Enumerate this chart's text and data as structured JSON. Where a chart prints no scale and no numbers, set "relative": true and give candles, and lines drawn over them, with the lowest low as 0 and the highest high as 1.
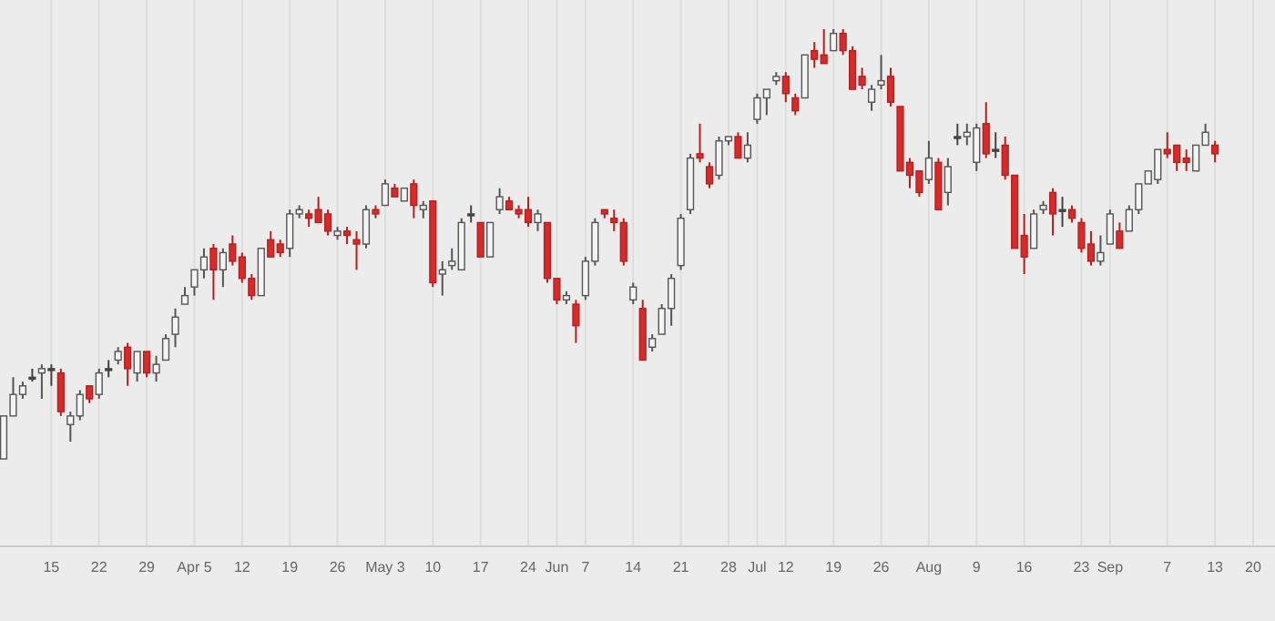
{
  "chart_data": {
    "type": "candlestick",
    "relative": true,
    "grid": "x",
    "categories": [
      null,
      null,
      null,
      null,
      null,
      "15",
      null,
      null,
      null,
      null,
      "22",
      null,
      null,
      null,
      null,
      "29",
      null,
      null,
      null,
      null,
      "Apr 5",
      null,
      null,
      null,
      null,
      "12",
      null,
      null,
      null,
      null,
      "19",
      null,
      null,
      null,
      null,
      "26",
      null,
      null,
      null,
      null,
      "May 3",
      null,
      null,
      null,
      null,
      "10",
      null,
      null,
      null,
      null,
      "17",
      null,
      null,
      null,
      null,
      "24",
      null,
      null,
      "Jun",
      null,
      null,
      "7",
      null,
      null,
      null,
      null,
      "14",
      null,
      null,
      null,
      null,
      "21",
      null,
      null,
      null,
      null,
      "28",
      null,
      null,
      "Jul",
      null,
      null,
      "12",
      null,
      null,
      null,
      null,
      "19",
      null,
      null,
      null,
      null,
      "26",
      null,
      null,
      null,
      null,
      "Aug",
      null,
      null,
      null,
      null,
      "9",
      null,
      null,
      null,
      null,
      "16",
      null,
      null,
      null,
      null,
      null,
      "23",
      null,
      null,
      "Sep",
      null,
      null,
      null,
      null,
      null,
      "7",
      null,
      null,
      null,
      null,
      "13",
      null,
      null,
      null,
      "20"
    ],
    "ohlc": [
      [
        0,
        0.1,
        0,
        0.1
      ],
      [
        0.1,
        0.19,
        0.1,
        0.15
      ],
      [
        0.15,
        0.18,
        0.14,
        0.17
      ],
      [
        0.19,
        0.21,
        0.18,
        0.19
      ],
      [
        0.2,
        0.22,
        0.14,
        0.21
      ],
      [
        0.21,
        0.22,
        0.17,
        0.21
      ],
      [
        0.2,
        0.21,
        0.1,
        0.11
      ],
      [
        0.08,
        0.11,
        0.04,
        0.1
      ],
      [
        0.1,
        0.16,
        0.09,
        0.15
      ],
      [
        0.17,
        0.17,
        0.13,
        0.14
      ],
      [
        0.15,
        0.21,
        0.14,
        0.2
      ],
      [
        0.21,
        0.23,
        0.19,
        0.21
      ],
      [
        0.23,
        0.26,
        0.22,
        0.25
      ],
      [
        0.26,
        0.27,
        0.17,
        0.21
      ],
      [
        0.2,
        0.25,
        0.18,
        0.25
      ],
      [
        0.25,
        0.25,
        0.19,
        0.2
      ],
      [
        0.2,
        0.24,
        0.18,
        0.22
      ],
      [
        0.23,
        0.29,
        0.23,
        0.28
      ],
      [
        0.29,
        0.35,
        0.26,
        0.33
      ],
      [
        0.36,
        0.4,
        0.36,
        0.38
      ],
      [
        0.4,
        0.44,
        0.38,
        0.44
      ],
      [
        0.44,
        0.49,
        0.42,
        0.47
      ],
      [
        0.49,
        0.5,
        0.37,
        0.44
      ],
      [
        0.44,
        0.49,
        0.4,
        0.48
      ],
      [
        0.5,
        0.52,
        0.45,
        0.46
      ],
      [
        0.47,
        0.48,
        0.41,
        0.42
      ],
      [
        0.42,
        0.43,
        0.37,
        0.38
      ],
      [
        0.38,
        0.49,
        0.38,
        0.49
      ],
      [
        0.51,
        0.53,
        0.47,
        0.47
      ],
      [
        0.5,
        0.51,
        0.47,
        0.48
      ],
      [
        0.49,
        0.58,
        0.47,
        0.57
      ],
      [
        0.57,
        0.59,
        0.56,
        0.58
      ],
      [
        0.57,
        0.58,
        0.54,
        0.56
      ],
      [
        0.58,
        0.61,
        0.55,
        0.55
      ],
      [
        0.57,
        0.58,
        0.52,
        0.53
      ],
      [
        0.52,
        0.54,
        0.51,
        0.53
      ],
      [
        0.53,
        0.54,
        0.5,
        0.52
      ],
      [
        0.51,
        0.53,
        0.44,
        0.5
      ],
      [
        0.5,
        0.59,
        0.49,
        0.58
      ],
      [
        0.58,
        0.59,
        0.56,
        0.57
      ],
      [
        0.59,
        0.65,
        0.59,
        0.64
      ],
      [
        0.63,
        0.64,
        0.61,
        0.61
      ],
      [
        0.6,
        0.63,
        0.6,
        0.63
      ],
      [
        0.64,
        0.65,
        0.56,
        0.59
      ],
      [
        0.58,
        0.6,
        0.56,
        0.59
      ],
      [
        0.6,
        0.6,
        0.4,
        0.41
      ],
      [
        0.43,
        0.46,
        0.38,
        0.44
      ],
      [
        0.45,
        0.49,
        0.44,
        0.46
      ],
      [
        0.44,
        0.56,
        0.44,
        0.55
      ],
      [
        0.57,
        0.59,
        0.55,
        0.57
      ],
      [
        0.55,
        0.55,
        0.47,
        0.47
      ],
      [
        0.47,
        0.55,
        0.47,
        0.55
      ],
      [
        0.58,
        0.63,
        0.57,
        0.61
      ],
      [
        0.6,
        0.61,
        0.58,
        0.58
      ],
      [
        0.58,
        0.59,
        0.56,
        0.57
      ],
      [
        0.58,
        0.61,
        0.54,
        0.55
      ],
      [
        0.55,
        0.58,
        0.53,
        0.57
      ],
      [
        0.55,
        0.55,
        0.41,
        0.42
      ],
      [
        0.42,
        0.42,
        0.36,
        0.37
      ],
      [
        0.37,
        0.39,
        0.36,
        0.38
      ],
      [
        0.36,
        0.37,
        0.27,
        0.31
      ],
      [
        0.38,
        0.47,
        0.37,
        0.46
      ],
      [
        0.46,
        0.56,
        0.45,
        0.55
      ],
      [
        0.58,
        0.58,
        0.56,
        0.57
      ],
      [
        0.56,
        0.58,
        0.53,
        0.55
      ],
      [
        0.55,
        0.56,
        0.45,
        0.46
      ],
      [
        0.37,
        0.41,
        0.36,
        0.4
      ],
      [
        0.35,
        0.37,
        0.23,
        0.23
      ],
      [
        0.26,
        0.29,
        0.25,
        0.28
      ],
      [
        0.29,
        0.36,
        0.29,
        0.35
      ],
      [
        0.35,
        0.43,
        0.31,
        0.42
      ],
      [
        0.45,
        0.57,
        0.44,
        0.56
      ],
      [
        0.58,
        0.71,
        0.57,
        0.7
      ],
      [
        0.71,
        0.78,
        0.69,
        0.7
      ],
      [
        0.68,
        0.69,
        0.63,
        0.64
      ],
      [
        0.66,
        0.75,
        0.65,
        0.74
      ],
      [
        0.74,
        0.75,
        0.73,
        0.75
      ],
      [
        0.75,
        0.76,
        0.7,
        0.7
      ],
      [
        0.7,
        0.76,
        0.69,
        0.73
      ],
      [
        0.79,
        0.85,
        0.78,
        0.84
      ],
      [
        0.84,
        0.86,
        0.8,
        0.86
      ],
      [
        0.88,
        0.9,
        0.87,
        0.89
      ],
      [
        0.89,
        0.9,
        0.83,
        0.85
      ],
      [
        0.84,
        0.85,
        0.8,
        0.81
      ],
      [
        0.84,
        0.94,
        0.84,
        0.94
      ],
      [
        0.95,
        0.97,
        0.91,
        0.93
      ],
      [
        0.94,
        1,
        0.92,
        0.92
      ],
      [
        0.95,
        1,
        0.95,
        0.99
      ],
      [
        0.99,
        1,
        0.94,
        0.95
      ],
      [
        0.95,
        0.96,
        0.86,
        0.86
      ],
      [
        0.89,
        0.91,
        0.86,
        0.87
      ],
      [
        0.83,
        0.87,
        0.81,
        0.86
      ],
      [
        0.87,
        0.94,
        0.86,
        0.88
      ],
      [
        0.89,
        0.91,
        0.82,
        0.83
      ],
      [
        0.82,
        0.82,
        0.67,
        0.67
      ],
      [
        0.69,
        0.7,
        0.63,
        0.66
      ],
      [
        0.67,
        0.67,
        0.61,
        0.62
      ],
      [
        0.65,
        0.74,
        0.64,
        0.7
      ],
      [
        0.69,
        0.7,
        0.58,
        0.58
      ],
      [
        0.62,
        0.7,
        0.59,
        0.68
      ],
      [
        0.75,
        0.78,
        0.73,
        0.75
      ],
      [
        0.75,
        0.78,
        0.73,
        0.76
      ],
      [
        0.69,
        0.78,
        0.67,
        0.77
      ],
      [
        0.78,
        0.83,
        0.7,
        0.71
      ],
      [
        0.72,
        0.76,
        0.7,
        0.72
      ],
      [
        0.73,
        0.75,
        0.65,
        0.66
      ],
      [
        0.66,
        0.66,
        0.49,
        0.49
      ],
      [
        0.52,
        0.57,
        0.43,
        0.47
      ],
      [
        0.49,
        0.58,
        0.49,
        0.57
      ],
      [
        0.58,
        0.6,
        0.57,
        0.59
      ],
      [
        0.62,
        0.63,
        0.52,
        0.57
      ],
      [
        0.58,
        0.61,
        0.54,
        0.58
      ],
      [
        0.58,
        0.59,
        0.55,
        0.56
      ],
      [
        0.55,
        0.56,
        0.48,
        0.49
      ],
      [
        0.5,
        0.53,
        0.45,
        0.46
      ],
      [
        0.46,
        0.52,
        0.45,
        0.48
      ],
      [
        0.5,
        0.58,
        0.5,
        0.57
      ],
      [
        0.53,
        0.55,
        0.49,
        0.49
      ],
      [
        0.53,
        0.59,
        0.53,
        0.58
      ],
      [
        0.58,
        0.64,
        0.57,
        0.64
      ],
      [
        0.64,
        0.67,
        0.64,
        0.67
      ],
      [
        0.65,
        0.72,
        0.64,
        0.72
      ],
      [
        0.72,
        0.76,
        0.7,
        0.71
      ],
      [
        0.73,
        0.73,
        0.67,
        0.69
      ],
      [
        0.7,
        0.72,
        0.67,
        0.69
      ],
      [
        0.67,
        0.73,
        0.67,
        0.73
      ],
      [
        0.73,
        0.78,
        0.73,
        0.76
      ],
      [
        0.73,
        0.74,
        0.69,
        0.71
      ],
      null,
      null,
      null,
      null
    ]
  }
}
